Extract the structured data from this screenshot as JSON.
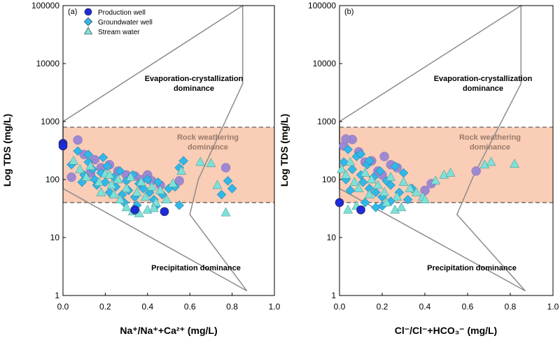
{
  "colors": {
    "production": "#1f2bd8",
    "groundwater": "#32b8e8",
    "stream": "#7fe0d8",
    "overlay_points": "#9d88d2",
    "rock_band": "#f9cdb6",
    "envelope": "#8c8c8c"
  },
  "chart_data": [
    {
      "type": "scatter",
      "panel": "a",
      "panel_label": "(a)",
      "xlabel": "Na⁺/Na⁺+Ca²⁺ (mg/L)",
      "ylabel": "Log TDS (mg/L)",
      "xlim": [
        0,
        1.0
      ],
      "ylim": [
        1,
        100000
      ],
      "yscale": "log",
      "x_ticks": [
        "0.0",
        "0.2",
        "0.4",
        "0.6",
        "0.8",
        "1.0"
      ],
      "y_ticks": [
        "1",
        "10",
        "100",
        "1000",
        "10000",
        "100000"
      ],
      "legend_position": "top-left",
      "legend": [
        "Production well",
        "Groundwater well",
        "Stream water"
      ],
      "annotations": {
        "evap_line1": "Evaporation-crystallization",
        "evap_line2": "dominance",
        "rock_line1": "Rock weathering",
        "rock_line2": "dominance",
        "precip": "Precipitation dominance"
      },
      "rock_band": [
        40,
        800
      ],
      "envelope": [
        [
          0.0,
          1000
        ],
        [
          0.85,
          100000
        ],
        [
          0.85,
          4500
        ],
        [
          0.64,
          100
        ],
        [
          0.6,
          25
        ],
        [
          0.87,
          1.2
        ],
        [
          0.0,
          70
        ]
      ],
      "series": [
        {
          "name": "Production well",
          "points": [
            [
              0.0,
              420
            ],
            [
              0.0,
              380
            ],
            [
              0.34,
              30
            ],
            [
              0.48,
              28
            ]
          ]
        },
        {
          "name": "Groundwater well",
          "points": [
            [
              0.04,
              180
            ],
            [
              0.07,
              310
            ],
            [
              0.1,
              120
            ],
            [
              0.12,
              200
            ],
            [
              0.14,
              150
            ],
            [
              0.15,
              100
            ],
            [
              0.16,
              80
            ],
            [
              0.18,
              130
            ],
            [
              0.2,
              90
            ],
            [
              0.21,
              170
            ],
            [
              0.22,
              60
            ],
            [
              0.24,
              110
            ],
            [
              0.25,
              75
            ],
            [
              0.27,
              140
            ],
            [
              0.28,
              55
            ],
            [
              0.3,
              95
            ],
            [
              0.31,
              65
            ],
            [
              0.33,
              120
            ],
            [
              0.34,
              50
            ],
            [
              0.36,
              85
            ],
            [
              0.38,
              70
            ],
            [
              0.4,
              100
            ],
            [
              0.41,
              60
            ],
            [
              0.43,
              45
            ],
            [
              0.45,
              90
            ],
            [
              0.47,
              55
            ],
            [
              0.5,
              70
            ],
            [
              0.53,
              75
            ],
            [
              0.55,
              160
            ],
            [
              0.57,
              210
            ],
            [
              0.75,
              55
            ],
            [
              0.78,
              95
            ],
            [
              0.8,
              70
            ],
            [
              0.09,
              90
            ],
            [
              0.19,
              240
            ],
            [
              0.29,
              40
            ],
            [
              0.35,
              36
            ],
            [
              0.44,
              35
            ],
            [
              0.55,
              36
            ],
            [
              0.12,
              270
            ]
          ]
        },
        {
          "name": "Stream water",
          "points": [
            [
              0.05,
              210
            ],
            [
              0.08,
              150
            ],
            [
              0.11,
              110
            ],
            [
              0.13,
              170
            ],
            [
              0.17,
              90
            ],
            [
              0.2,
              125
            ],
            [
              0.23,
              80
            ],
            [
              0.26,
              100
            ],
            [
              0.3,
              70
            ],
            [
              0.32,
              110
            ],
            [
              0.35,
              60
            ],
            [
              0.37,
              90
            ],
            [
              0.39,
              50
            ],
            [
              0.42,
              75
            ],
            [
              0.44,
              40
            ],
            [
              0.46,
              65
            ],
            [
              0.49,
              45
            ],
            [
              0.52,
              85
            ],
            [
              0.56,
              140
            ],
            [
              0.65,
              200
            ],
            [
              0.7,
              190
            ],
            [
              0.73,
              80
            ],
            [
              0.77,
              27
            ],
            [
              0.33,
              28
            ],
            [
              0.36,
              26
            ],
            [
              0.4,
              30
            ],
            [
              0.43,
              32
            ],
            [
              0.3,
              33
            ],
            [
              0.27,
              45
            ],
            [
              0.24,
              55
            ],
            [
              0.22,
              120
            ],
            [
              0.18,
              60
            ]
          ]
        },
        {
          "name": "Purple points",
          "points": [
            [
              0.07,
              480
            ],
            [
              0.1,
              270
            ],
            [
              0.13,
              130
            ],
            [
              0.15,
              220
            ],
            [
              0.18,
              160
            ],
            [
              0.22,
              180
            ],
            [
              0.26,
              140
            ],
            [
              0.3,
              120
            ],
            [
              0.34,
              115
            ],
            [
              0.37,
              100
            ],
            [
              0.4,
              120
            ],
            [
              0.42,
              95
            ],
            [
              0.46,
              80
            ],
            [
              0.55,
              95
            ],
            [
              0.77,
              160
            ],
            [
              0.04,
              110
            ]
          ]
        }
      ]
    },
    {
      "type": "scatter",
      "panel": "b",
      "panel_label": "(b)",
      "xlabel": "Cl⁻/Cl⁻+HCO₃⁻ (mg/L)",
      "ylabel": "Log TDS (mg/L)",
      "xlim": [
        0,
        1.0
      ],
      "ylim": [
        1,
        100000
      ],
      "yscale": "log",
      "x_ticks": [
        "0.0",
        "0.2",
        "0.4",
        "0.6",
        "0.8",
        "1.0"
      ],
      "y_ticks": [
        "1",
        "10",
        "100",
        "1000",
        "10000",
        "100000"
      ],
      "annotations": {
        "evap_line1": "Evaporation-crystallization",
        "evap_line2": "dominance",
        "rock_line1": "Rock weathering",
        "rock_line2": "dominance",
        "precip": "Precipitation dominance"
      },
      "rock_band": [
        40,
        800
      ],
      "envelope": [
        [
          0.0,
          1000
        ],
        [
          0.85,
          100000
        ],
        [
          0.85,
          4500
        ],
        [
          0.63,
          120
        ],
        [
          0.55,
          25
        ],
        [
          0.87,
          1.2
        ],
        [
          0.0,
          70
        ]
      ],
      "series": [
        {
          "name": "Production well",
          "points": [
            [
              0.0,
              40
            ],
            [
              0.1,
              30
            ]
          ]
        },
        {
          "name": "Groundwater well",
          "points": [
            [
              0.02,
              200
            ],
            [
              0.04,
              330
            ],
            [
              0.06,
              150
            ],
            [
              0.08,
              250
            ],
            [
              0.1,
              120
            ],
            [
              0.11,
              90
            ],
            [
              0.13,
              180
            ],
            [
              0.14,
              70
            ],
            [
              0.16,
              110
            ],
            [
              0.17,
              60
            ],
            [
              0.19,
              140
            ],
            [
              0.2,
              50
            ],
            [
              0.22,
              95
            ],
            [
              0.24,
              80
            ],
            [
              0.26,
              170
            ],
            [
              0.28,
              60
            ],
            [
              0.3,
              130
            ],
            [
              0.32,
              45
            ],
            [
              0.34,
              70
            ],
            [
              0.2,
              35
            ],
            [
              0.17,
              33
            ],
            [
              0.12,
              40
            ],
            [
              0.24,
              42
            ],
            [
              0.1,
              275
            ],
            [
              0.03,
              100
            ],
            [
              0.05,
              65
            ],
            [
              0.14,
              210
            ]
          ]
        },
        {
          "name": "Stream water",
          "points": [
            [
              0.01,
              150
            ],
            [
              0.03,
              120
            ],
            [
              0.05,
              200
            ],
            [
              0.07,
              90
            ],
            [
              0.09,
              70
            ],
            [
              0.12,
              130
            ],
            [
              0.15,
              100
            ],
            [
              0.18,
              80
            ],
            [
              0.21,
              60
            ],
            [
              0.24,
              110
            ],
            [
              0.27,
              50
            ],
            [
              0.3,
              90
            ],
            [
              0.33,
              70
            ],
            [
              0.36,
              60
            ],
            [
              0.39,
              50
            ],
            [
              0.45,
              95
            ],
            [
              0.49,
              120
            ],
            [
              0.52,
              130
            ],
            [
              0.68,
              180
            ],
            [
              0.71,
              200
            ],
            [
              0.82,
              185
            ],
            [
              0.26,
              30
            ],
            [
              0.29,
              33
            ],
            [
              0.22,
              40
            ],
            [
              0.04,
              30
            ],
            [
              0.08,
              35
            ],
            [
              0.14,
              55
            ],
            [
              0.4,
              45
            ]
          ]
        },
        {
          "name": "Purple points",
          "points": [
            [
              0.02,
              380
            ],
            [
              0.06,
              490
            ],
            [
              0.09,
              300
            ],
            [
              0.12,
              200
            ],
            [
              0.15,
              210
            ],
            [
              0.18,
              140
            ],
            [
              0.21,
              250
            ],
            [
              0.24,
              180
            ],
            [
              0.27,
              160
            ],
            [
              0.2,
              120
            ],
            [
              0.4,
              65
            ],
            [
              0.43,
              85
            ],
            [
              0.64,
              140
            ],
            [
              0.03,
              500
            ]
          ]
        }
      ]
    }
  ]
}
